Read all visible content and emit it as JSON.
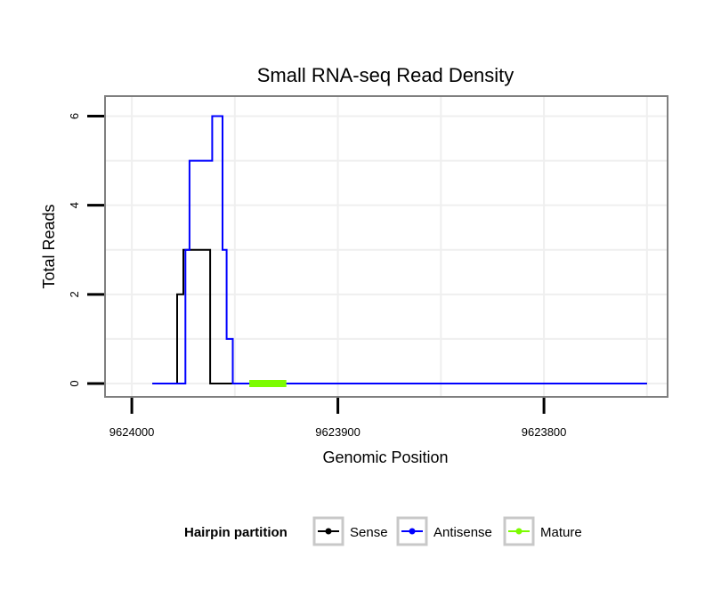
{
  "chart_data": {
    "type": "line",
    "title": "Small RNA-seq Read Density",
    "xlabel": "Genomic Position",
    "ylabel": "Total Reads",
    "xlim": [
      9624013,
      9623740
    ],
    "ylim": [
      -0.3,
      6.45
    ],
    "x_ticks": [
      9624000,
      9623900,
      9623800
    ],
    "x_tick_labels": [
      "9624000",
      "9623900",
      "9623800"
    ],
    "y_ticks": [
      0,
      2,
      4,
      6
    ],
    "y_tick_labels": [
      "0",
      "2",
      "4",
      "6"
    ],
    "grid": true,
    "series": [
      {
        "name": "Sense",
        "color": "#000000",
        "x": [
          9623990,
          9623978,
          9623978,
          9623977,
          9623977,
          9623976,
          9623976,
          9623975,
          9623975,
          9623963,
          9623963,
          9623962,
          9623962,
          9623750
        ],
        "y": [
          0,
          0,
          2,
          2,
          2,
          2,
          2,
          2,
          3,
          3,
          3,
          3,
          0,
          0
        ]
      },
      {
        "name": "Antisense",
        "color": "#0000ff",
        "x": [
          9623990,
          9623974,
          9623974,
          9623973,
          9623973,
          9623972,
          9623972,
          9623961,
          9623961,
          9623959,
          9623959,
          9623956,
          9623956,
          9623954,
          9623954,
          9623951,
          9623951,
          9623750
        ],
        "y": [
          0,
          0,
          3,
          3,
          3,
          3,
          5,
          5,
          6,
          6,
          6,
          6,
          3,
          3,
          1,
          1,
          0,
          0
        ]
      },
      {
        "name": "Mature",
        "color": "#7cfc00",
        "x": [
          9623943,
          9623925
        ],
        "y": [
          0,
          0
        ]
      }
    ],
    "legend": {
      "title": "Hairpin partition",
      "position": "bottom",
      "entries": [
        {
          "label": "Sense",
          "color": "#000000"
        },
        {
          "label": "Antisense",
          "color": "#0000ff"
        },
        {
          "label": "Mature",
          "color": "#7cfc00"
        }
      ]
    }
  }
}
